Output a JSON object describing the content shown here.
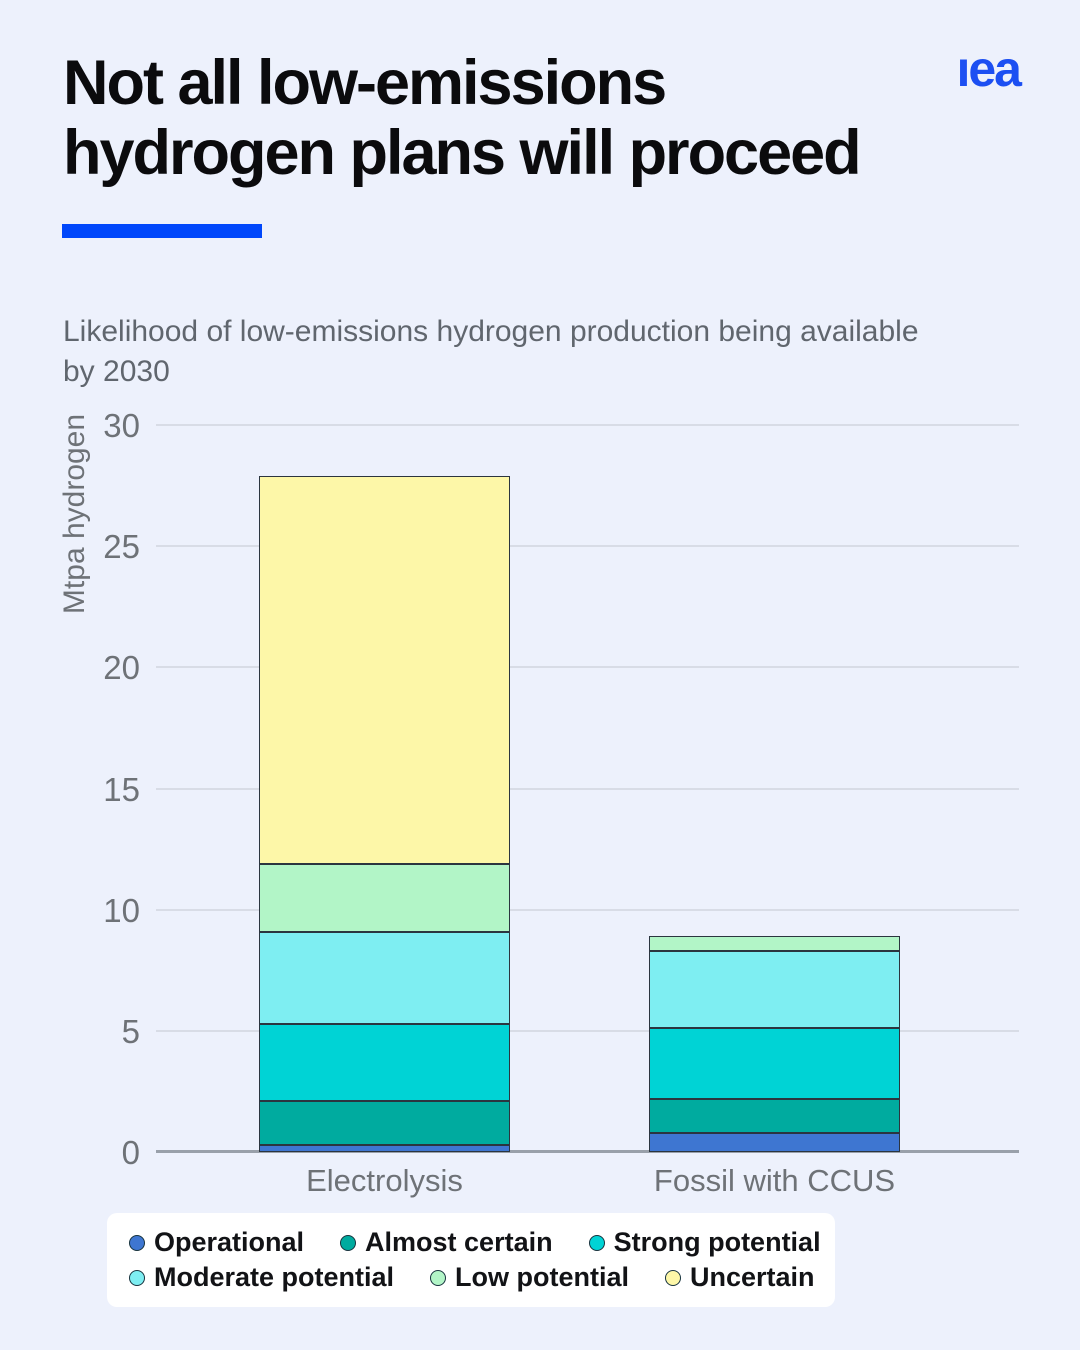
{
  "header": {
    "title_line1": "Not all low-emissions",
    "title_line2": "hydrogen plans will proceed",
    "logo_text": "ıea",
    "logo_color": "#1c4ff2",
    "accent_color": "#0047fb"
  },
  "chart_data": {
    "type": "bar",
    "stacked": true,
    "title": "Likelihood of low-emissions hydrogen production being available by 2030",
    "subtitle_line1": "Likelihood of low-emissions hydrogen production being available",
    "subtitle_line2": "by 2030",
    "ylabel": "Mtpa hydrogen",
    "xlabel": "",
    "ylim": [
      0,
      30
    ],
    "yticks": [
      30,
      25,
      20,
      15,
      10,
      5,
      0
    ],
    "grid": true,
    "legend_position": "bottom",
    "categories": [
      "Electrolysis",
      "Fossil with CCUS"
    ],
    "series": [
      {
        "name": "Operational",
        "color": "#3e76d1",
        "values": [
          0.3,
          0.8
        ]
      },
      {
        "name": "Almost certain",
        "color": "#00ab9f",
        "values": [
          1.8,
          1.4
        ]
      },
      {
        "name": "Strong potential",
        "color": "#00d3d5",
        "values": [
          3.2,
          2.9
        ]
      },
      {
        "name": "Moderate potential",
        "color": "#7eeef2",
        "values": [
          3.8,
          3.2
        ]
      },
      {
        "name": "Low potential",
        "color": "#b2f5c7",
        "values": [
          2.8,
          0.6
        ]
      },
      {
        "name": "Uncertain",
        "color": "#fdf7a8",
        "values": [
          16.0,
          0.0
        ]
      }
    ],
    "totals": [
      27.9,
      8.9
    ]
  }
}
